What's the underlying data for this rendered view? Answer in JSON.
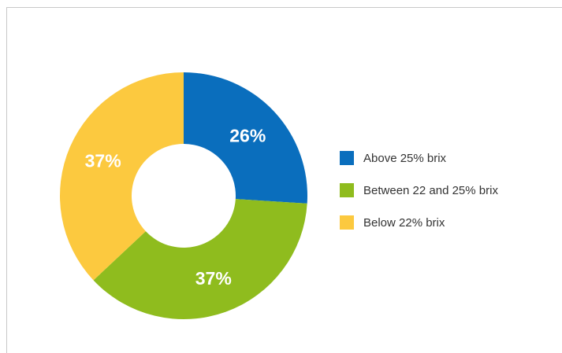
{
  "chart_data": {
    "type": "pie",
    "donut": true,
    "title": "",
    "legend_position": "right",
    "slices": [
      {
        "name": "Above 25% brix",
        "value": 26,
        "label": "26%",
        "color": "#0a6ebd"
      },
      {
        "name": "Between 22 and 25% brix",
        "value": 37,
        "label": "37%",
        "color": "#8fbc1e"
      },
      {
        "name": "Below 22% brix",
        "value": 37,
        "label": "37%",
        "color": "#fcc93f"
      }
    ]
  }
}
